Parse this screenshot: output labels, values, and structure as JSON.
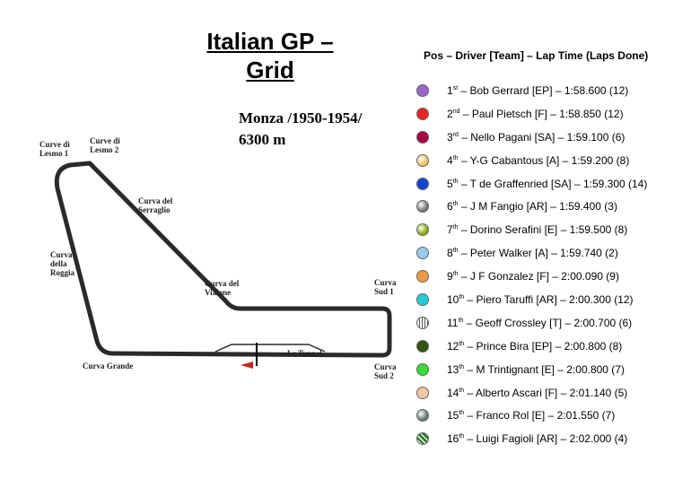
{
  "title_line1": "Italian GP –",
  "title_line2": "Grid",
  "track": {
    "name_line1": "Monza /1950-1954/",
    "name_line2": "6300 m",
    "corners": [
      {
        "id": "lesmo1",
        "lines": [
          "Curve di",
          "Lesmo 1"
        ]
      },
      {
        "id": "lesmo2",
        "lines": [
          "Curve di",
          "Lesmo 2"
        ]
      },
      {
        "id": "serraglio",
        "lines": [
          "Curva del",
          "Serraglio"
        ]
      },
      {
        "id": "roggia",
        "lines": [
          "Curva",
          "della",
          "Roggia"
        ]
      },
      {
        "id": "vialone",
        "lines": [
          "Curva del",
          "Vialone"
        ]
      },
      {
        "id": "sud1",
        "lines": [
          "Curva",
          "Sud 1"
        ]
      },
      {
        "id": "sud2",
        "lines": [
          "Curva",
          "Sud 2"
        ]
      },
      {
        "id": "grande",
        "lines": [
          "Curva Grande"
        ]
      },
      {
        "id": "tunnel",
        "lines": [
          "Le Tunnel"
        ]
      }
    ]
  },
  "legend_header": "Pos – Driver [Team] – Lap Time (Laps Done)",
  "grid": [
    {
      "pos": "1",
      "suffix": "st",
      "text": " – Bob Gerrard [EP] – 1:58.600 (12)",
      "color": "#9966cc",
      "style": "plain"
    },
    {
      "pos": "2",
      "suffix": "nd",
      "text": " – Paul Pietsch [F] – 1:58.850 (12)",
      "color": "#ee2222",
      "style": "plain"
    },
    {
      "pos": "3",
      "suffix": "rd",
      "text": " – Nello Pagani [SA] – 1:59.100 (6)",
      "color": "#aa0044",
      "style": "plain"
    },
    {
      "pos": "4",
      "suffix": "th",
      "text": " – Y-G Cabantous [A] – 1:59.200 (8)",
      "color": "#f0c060",
      "style": "grad"
    },
    {
      "pos": "5",
      "suffix": "th",
      "text": " –  T de Graffenried [SA] – 1:59.300 (14)",
      "color": "#1144cc",
      "style": "plain"
    },
    {
      "pos": "6",
      "suffix": "th",
      "text": " – J M Fangio [AR] – 1:59.400 (3)",
      "color": "#777777",
      "style": "grad"
    },
    {
      "pos": "7",
      "suffix": "th",
      "text": " – Dorino Serafini [E] – 1:59.500 (8)",
      "color": "#88aa11",
      "style": "grad"
    },
    {
      "pos": "8",
      "suffix": "th",
      "text": " – Peter Walker [A] – 1:59.740 (2)",
      "color": "#99ccee",
      "style": "plain"
    },
    {
      "pos": "9",
      "suffix": "th",
      "text": " – J F Gonzalez [F] – 2:00.090 (9)",
      "color": "#ee9944",
      "style": "plain"
    },
    {
      "pos": "10",
      "suffix": "th",
      "text": " – Piero Taruffi [AR] – 2:00.300 (12)",
      "color": "#22ccdd",
      "style": "plain"
    },
    {
      "pos": "11",
      "suffix": "th",
      "text": " – Geoff Crossley [T] – 2:00.700 (6)",
      "color": "#dddddd",
      "style": "stripes"
    },
    {
      "pos": "12",
      "suffix": "th",
      "text": " – Prince Bira [EP] – 2:00.800 (8)",
      "color": "#335511",
      "style": "plain"
    },
    {
      "pos": "13",
      "suffix": "th",
      "text": " – M Trintignant [E] – 2:00.800 (7)",
      "color": "#33dd33",
      "style": "plain"
    },
    {
      "pos": "14",
      "suffix": "th",
      "text": " – Alberto Ascari [F] – 2:01.140 (5)",
      "color": "#f5c8a0",
      "style": "plain"
    },
    {
      "pos": "15",
      "suffix": "th",
      "text": " – Franco Rol [E] – 2:01.550 (7)",
      "color": "#667777",
      "style": "grad"
    },
    {
      "pos": "16",
      "suffix": "th",
      "text": " – Luigi Fagioli [AR] – 2:02.000 (4)",
      "color": "#1c6b1c",
      "style": "check"
    }
  ]
}
